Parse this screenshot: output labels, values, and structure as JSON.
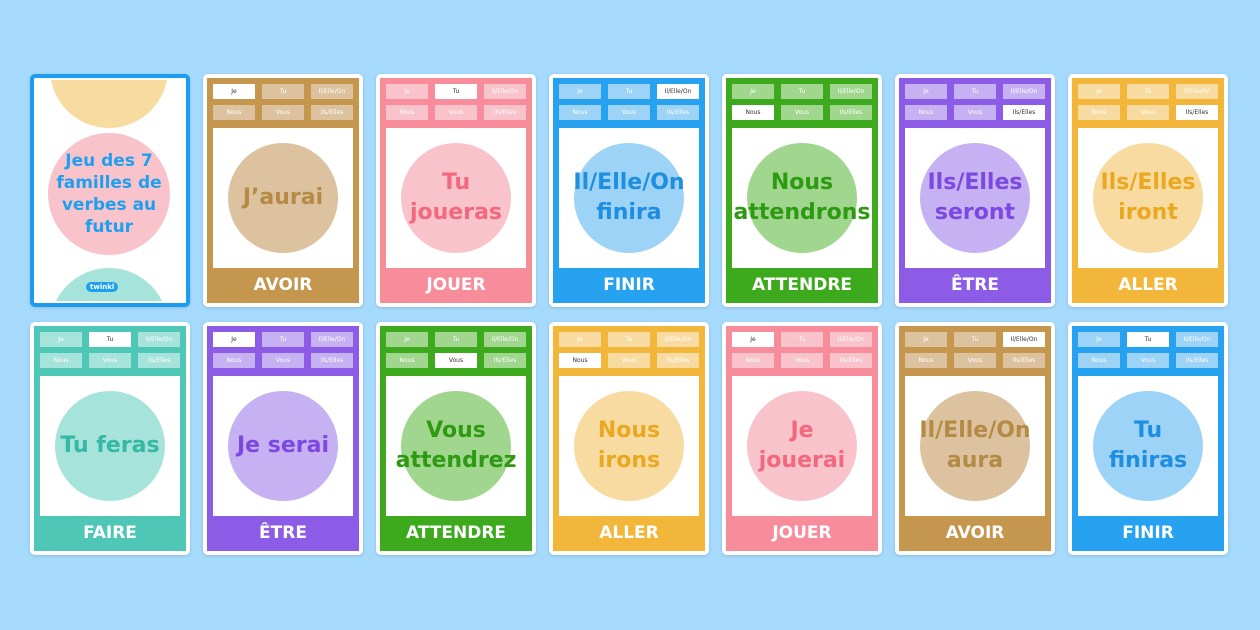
{
  "cover": {
    "title": "Jeu des 7 familles de verbes au futur",
    "logo": "twinkl"
  },
  "pronouns": [
    "Je",
    "Tu",
    "Il/Elle/On",
    "Nous",
    "Vous",
    "Ils/Elles"
  ],
  "families": {
    "AVOIR": {
      "main": "#c4964e",
      "light": "#dcc29e",
      "text": "#b58a45"
    },
    "JOUER": {
      "main": "#f78c9b",
      "light": "#f9c3cb",
      "text": "#f2687d"
    },
    "FINIR": {
      "main": "#27a2f0",
      "light": "#9dd3f7",
      "text": "#1e8ee0"
    },
    "ATTENDRE": {
      "main": "#3caa1c",
      "light": "#a0d68e",
      "text": "#2e9a12"
    },
    "ÊTRE": {
      "main": "#8c5ce6",
      "light": "#c6b1f2",
      "text": "#7c48e0"
    },
    "ALLER": {
      "main": "#f2b73a",
      "light": "#f8dba0",
      "text": "#e9a820"
    },
    "FAIRE": {
      "main": "#4fc7b6",
      "light": "#a6e3da",
      "text": "#35b8a5"
    }
  },
  "cards": [
    {
      "phrase": "J’aurai",
      "family": "AVOIR",
      "selected_pronoun": "Je"
    },
    {
      "phrase": "Tu joueras",
      "family": "JOUER",
      "selected_pronoun": "Tu"
    },
    {
      "phrase": "Il/Elle/On finira",
      "family": "FINIR",
      "selected_pronoun": "Il/Elle/On"
    },
    {
      "phrase": "Nous attendrons",
      "family": "ATTENDRE",
      "selected_pronoun": "Nous"
    },
    {
      "phrase": "Ils/Elles seront",
      "family": "ÊTRE",
      "selected_pronoun": "Ils/Elles"
    },
    {
      "phrase": "Ils/Elles iront",
      "family": "ALLER",
      "selected_pronoun": "Ils/Elles"
    },
    {
      "phrase": "Tu feras",
      "family": "FAIRE",
      "selected_pronoun": "Tu"
    },
    {
      "phrase": "Je serai",
      "family": "ÊTRE",
      "selected_pronoun": "Je"
    },
    {
      "phrase": "Vous attendrez",
      "family": "ATTENDRE",
      "selected_pronoun": "Vous"
    },
    {
      "phrase": "Nous irons",
      "family": "ALLER",
      "selected_pronoun": "Nous"
    },
    {
      "phrase": "Je jouerai",
      "family": "JOUER",
      "selected_pronoun": "Je"
    },
    {
      "phrase": "Il/Elle/On aura",
      "family": "AVOIR",
      "selected_pronoun": "Il/Elle/On"
    },
    {
      "phrase": "Tu finiras",
      "family": "FINIR",
      "selected_pronoun": "Tu"
    }
  ]
}
